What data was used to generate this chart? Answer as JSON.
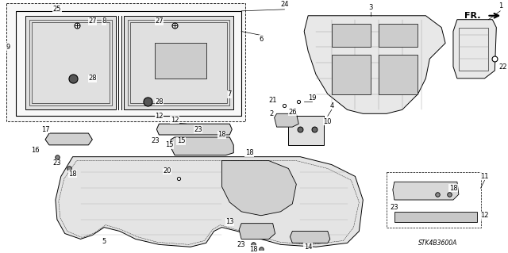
{
  "background_color": "#ffffff",
  "fig_width": 6.4,
  "fig_height": 3.19,
  "dpi": 100,
  "code_text": "STK4B3600A",
  "line_color": "#000000",
  "gray_fill": "#e8e8e8",
  "gray_mid": "#d0d0d0",
  "gray_dark": "#b0b0b0",
  "lw": 0.7,
  "lw_thin": 0.4,
  "lw_thick": 1.0
}
